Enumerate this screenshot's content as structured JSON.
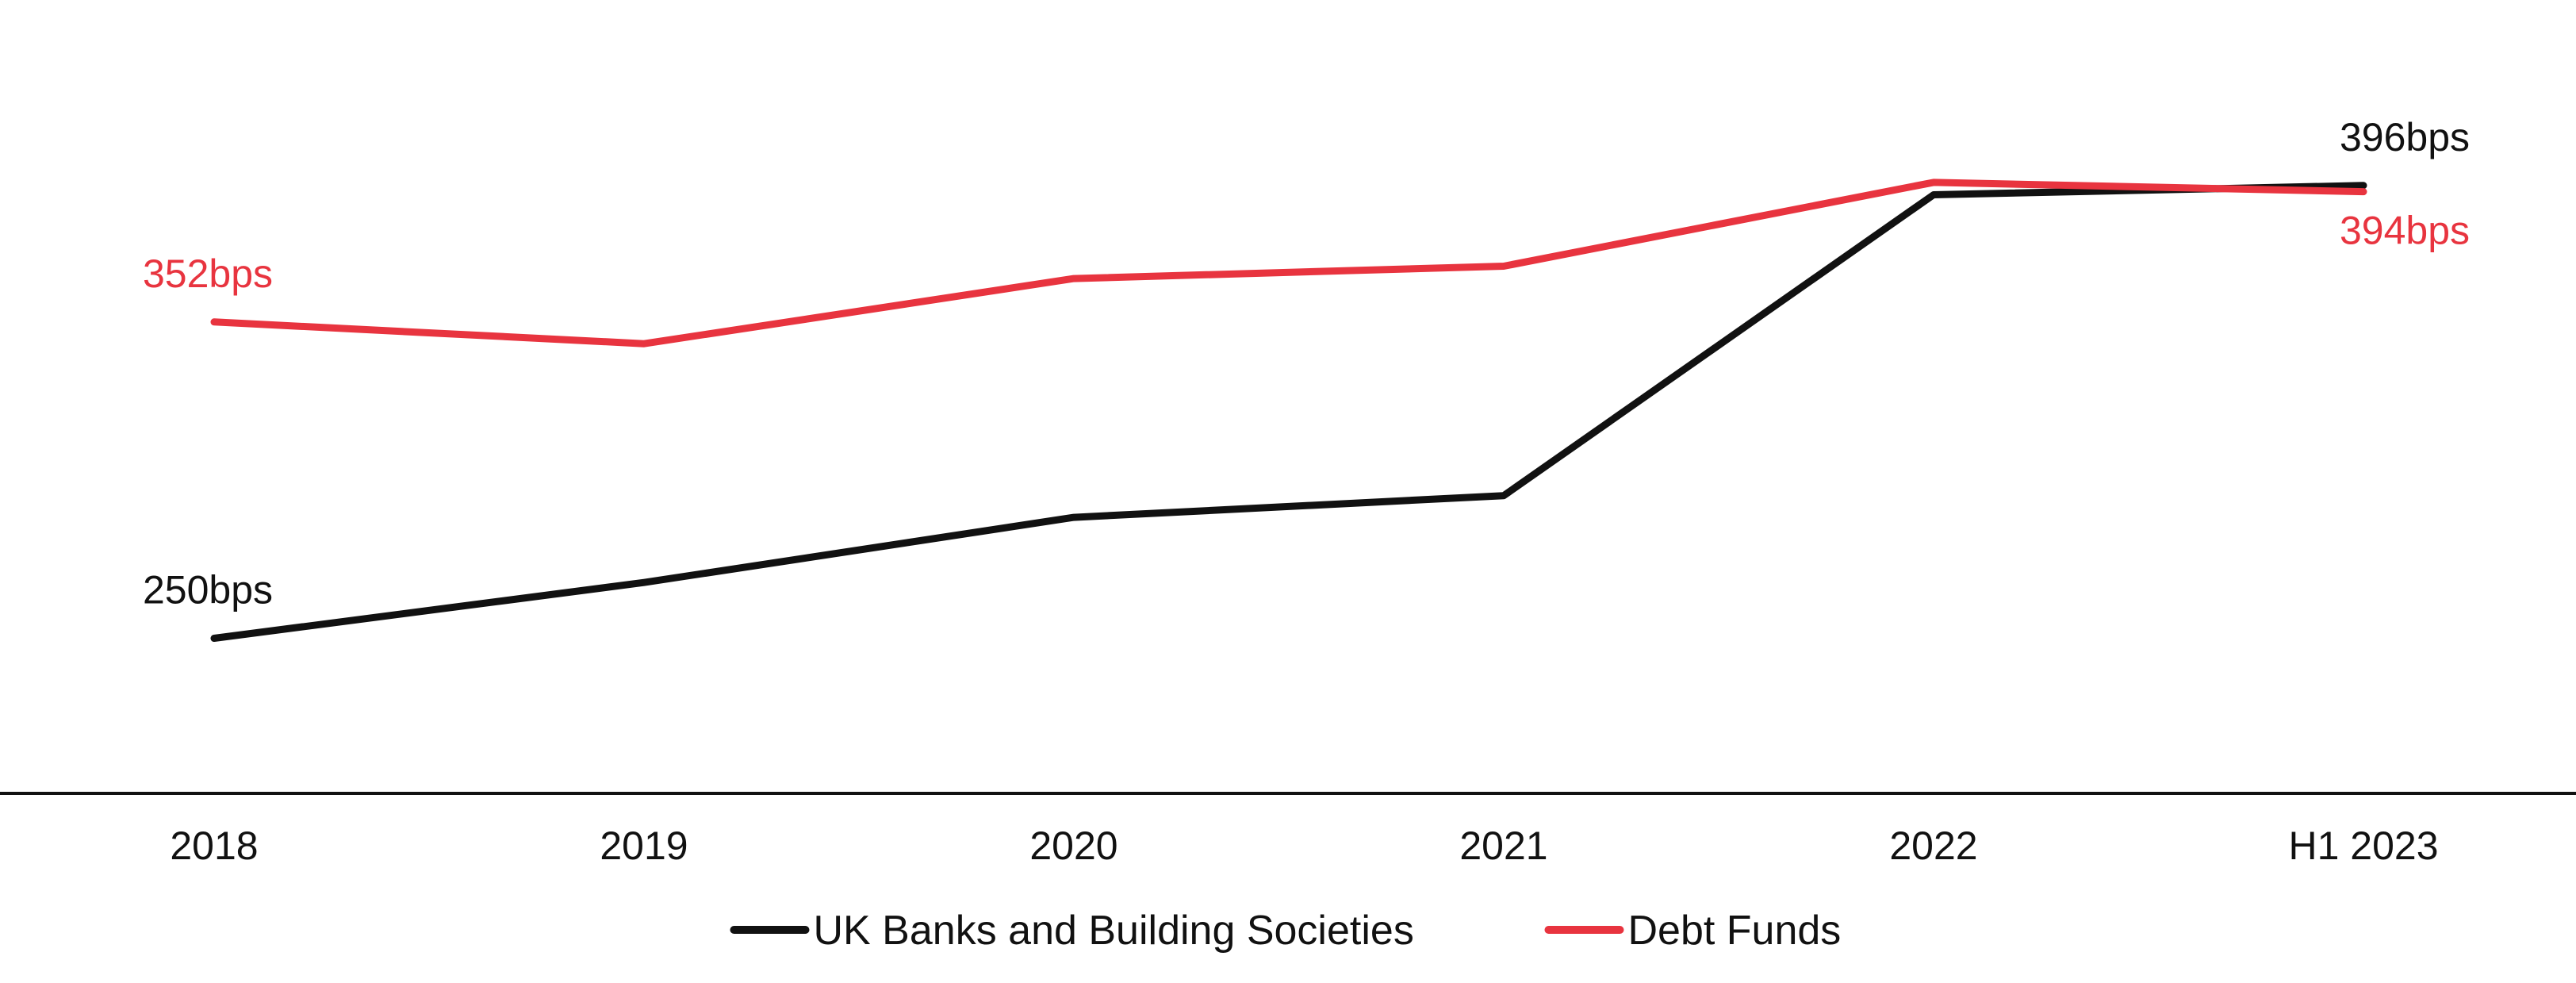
{
  "chart_data": {
    "type": "line",
    "title": "",
    "xlabel": "",
    "ylabel": "",
    "categories": [
      "2018",
      "2019",
      "2020",
      "2021",
      "2022",
      "H1 2023"
    ],
    "ylim": [
      200,
      420
    ],
    "grid": false,
    "legend_position": "bottom-center",
    "series": [
      {
        "name": "UK Banks and Building Societies",
        "color": "#111111",
        "values": [
          250,
          268,
          289,
          296,
          393,
          396
        ]
      },
      {
        "name": "Debt Funds",
        "color": "#e8343f",
        "values": [
          352,
          345,
          366,
          370,
          397,
          394
        ]
      }
    ],
    "annotations": [
      {
        "series": 0,
        "index": 0,
        "text": "250bps",
        "placement": "above"
      },
      {
        "series": 1,
        "index": 0,
        "text": "352bps",
        "placement": "above"
      },
      {
        "series": 0,
        "index": 5,
        "text": "396bps",
        "placement": "above"
      },
      {
        "series": 1,
        "index": 5,
        "text": "394bps",
        "placement": "below"
      }
    ]
  }
}
